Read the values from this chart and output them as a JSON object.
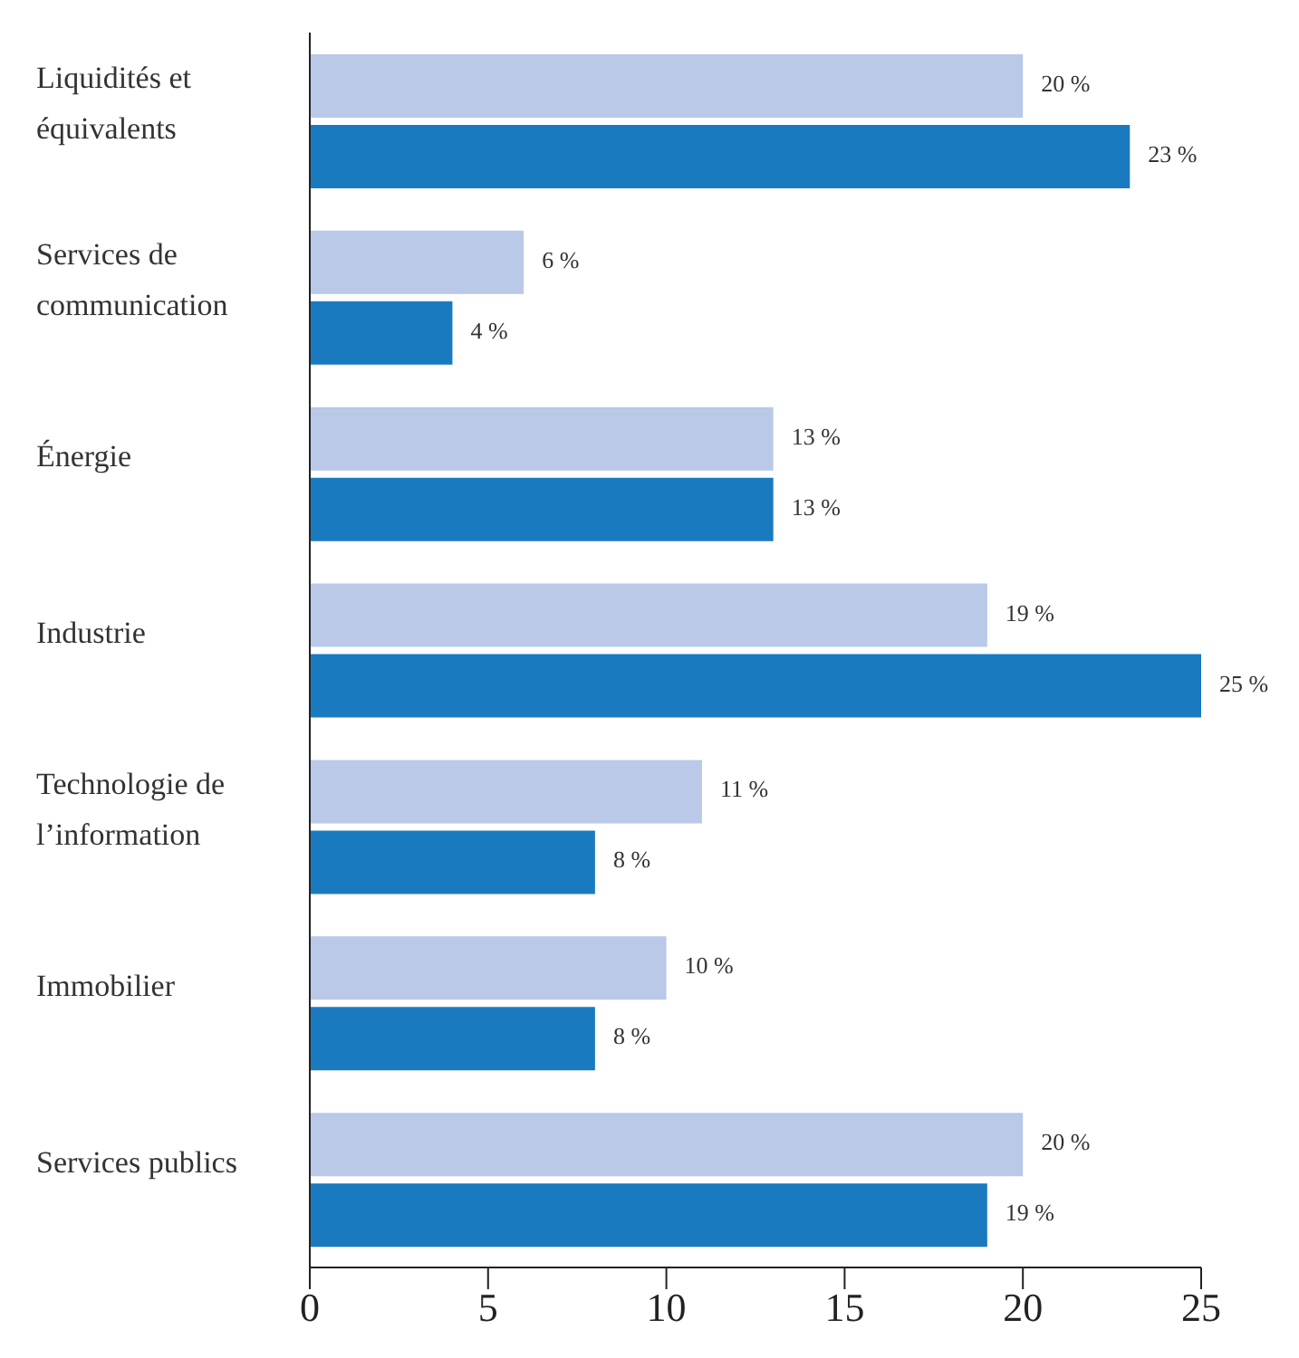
{
  "chart_data": {
    "type": "bar",
    "orientation": "horizontal",
    "categories": [
      "Liquidités et équivalents",
      "Services de communication",
      "Énergie",
      "Industrie",
      "Technologie de l’information",
      "Immobilier",
      "Services publics"
    ],
    "series": [
      {
        "color": "#b9c9e7",
        "values": [
          20,
          6,
          13,
          19,
          11,
          10,
          20
        ],
        "value_labels": [
          "20 %",
          "6 %",
          "13 %",
          "19 %",
          "11 %",
          "10 %",
          "20 %"
        ]
      },
      {
        "color": "#1a7abf",
        "values": [
          23,
          4,
          13,
          25,
          8,
          8,
          19
        ],
        "value_labels": [
          "23 %",
          "4 %",
          "13 %",
          "25 %",
          "8 %",
          "8 %",
          "19 %"
        ]
      }
    ],
    "xlim": [
      0,
      25
    ],
    "xticks": [
      0,
      5,
      10,
      15,
      20,
      25
    ],
    "grid": false,
    "legend": false
  }
}
